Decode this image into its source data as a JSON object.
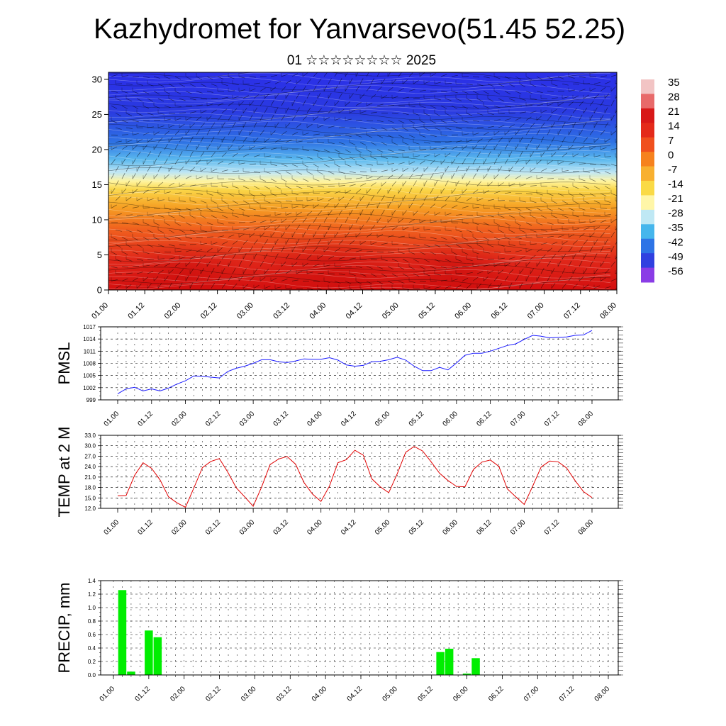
{
  "header": {
    "title": "Kazhydromet for Yanvarsevo(51.45 52.25)",
    "subtitle": "01 ☆☆☆☆☆☆☆☆ 2025"
  },
  "time_labels": [
    "01.00",
    "01.12",
    "02.00",
    "02.12",
    "03.00",
    "03.12",
    "04.00",
    "04.12",
    "05.00",
    "05.12",
    "06.00",
    "06.12",
    "07.00",
    "07.12",
    "08.00"
  ],
  "chart_data": [
    {
      "type": "heatmap",
      "name_key": "cross_section",
      "y_ticks": [
        0,
        5,
        10,
        15,
        20,
        25,
        30
      ],
      "ylim": [
        0,
        31
      ],
      "colorbar": {
        "labels": [
          "35",
          "28",
          "21",
          "14",
          "7",
          "0",
          "-7",
          "-14",
          "-21",
          "-28",
          "-35",
          "-42",
          "-49",
          "-56"
        ],
        "colors": [
          "#f2c4c4",
          "#e86a6a",
          "#d81818",
          "#e42a1a",
          "#f0501e",
          "#f6821e",
          "#f8b030",
          "#fada46",
          "#fff6a8",
          "#bfe8f4",
          "#46b6ec",
          "#2e74e6",
          "#3040e0",
          "#8a3ce6"
        ]
      }
    },
    {
      "type": "line",
      "ylabel": "PMSL",
      "ylim": [
        999,
        1017
      ],
      "y_ticks": [
        "1017",
        "1014",
        "1011",
        "1008",
        "1005",
        "1002",
        "999"
      ],
      "color": "#1a1aff",
      "values": [
        1000.5,
        1001.7,
        1002.1,
        1001.2,
        1001.7,
        1001.2,
        1001.9,
        1002.9,
        1003.7,
        1004.9,
        1004.8,
        1004.6,
        1004.4,
        1006.0,
        1006.8,
        1007.3,
        1008.0,
        1008.9,
        1008.9,
        1008.4,
        1008.2,
        1008.6,
        1009.1,
        1009.0,
        1009.0,
        1009.4,
        1008.8,
        1007.6,
        1007.3,
        1007.5,
        1008.4,
        1008.5,
        1008.9,
        1009.5,
        1008.8,
        1007.3,
        1006.2,
        1006.2,
        1007.0,
        1006.4,
        1008.1,
        1010.0,
        1010.5,
        1010.5,
        1011.0,
        1011.7,
        1012.4,
        1012.8,
        1013.9,
        1014.9,
        1014.7,
        1014.3,
        1014.4,
        1014.5,
        1014.9,
        1015.0,
        1016.1
      ]
    },
    {
      "type": "line",
      "ylabel": "TEMP at 2 M",
      "ylim": [
        12,
        33
      ],
      "y_ticks": [
        "33.0",
        "30.0",
        "27.0",
        "24.0",
        "21.0",
        "18.0",
        "15.0",
        "12.0"
      ],
      "color": "#e00000",
      "values": [
        15.6,
        15.7,
        21.5,
        25.1,
        23.5,
        20.2,
        15.3,
        13.6,
        12.3,
        17.9,
        23.7,
        25.5,
        26.3,
        22.4,
        17.9,
        15.3,
        12.6,
        18.2,
        24.6,
        26.2,
        26.9,
        24.7,
        19.4,
        16.1,
        14.0,
        18.4,
        25.1,
        26.0,
        28.7,
        27.3,
        20.5,
        18.2,
        16.5,
        21.9,
        28.1,
        29.8,
        28.5,
        25.4,
        22.1,
        20.0,
        18.3,
        18.2,
        23.2,
        25.3,
        25.9,
        24.1,
        17.6,
        15.3,
        13.1,
        18.4,
        23.9,
        25.6,
        25.4,
        23.6,
        20.0,
        16.8,
        15.1
      ]
    },
    {
      "type": "bar",
      "ylabel": "PRECIP, mm",
      "ylim": [
        0,
        1.4
      ],
      "y_ticks": [
        "1.4",
        "1.2",
        "1.0",
        "0.8",
        "0.6",
        "0.4",
        "0.2",
        "0.0"
      ],
      "color": "#00ee00",
      "values": [
        0,
        1.26,
        0.05,
        0,
        0.66,
        0.56,
        0,
        0,
        0,
        0,
        0,
        0,
        0,
        0,
        0,
        0,
        0,
        0,
        0,
        0,
        0,
        0,
        0,
        0,
        0,
        0,
        0,
        0,
        0,
        0,
        0,
        0,
        0,
        0,
        0,
        0,
        0,
        0.34,
        0.39,
        0,
        0.02,
        0.25,
        0,
        0,
        0,
        0,
        0,
        0,
        0,
        0,
        0,
        0,
        0,
        0,
        0,
        0,
        0
      ]
    }
  ]
}
